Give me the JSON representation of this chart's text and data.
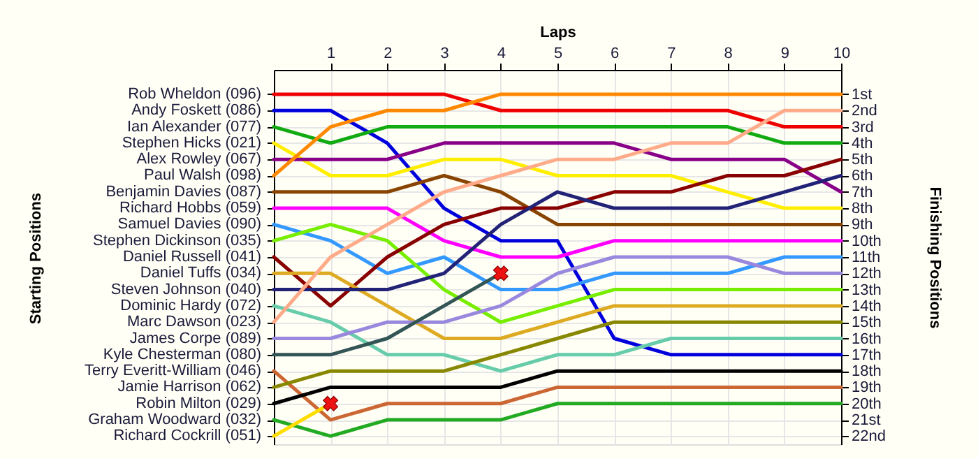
{
  "chart_data": {
    "type": "line",
    "xlabel": "Laps",
    "ylabel": "Finishing Positions",
    "x": [
      0,
      1,
      2,
      3,
      4,
      5,
      6,
      7,
      8,
      9,
      10
    ],
    "xlim": [
      0,
      10
    ],
    "xticks": [
      1,
      2,
      3,
      4,
      5,
      6,
      7,
      8,
      9,
      10
    ],
    "ylim": [
      22.5,
      -0.5
    ],
    "yticks": [
      {
        "value": 1,
        "label": "1st"
      },
      {
        "value": 2,
        "label": "2nd"
      },
      {
        "value": 3,
        "label": "3rd"
      },
      {
        "value": 4,
        "label": "4th"
      },
      {
        "value": 5,
        "label": "5th"
      },
      {
        "value": 6,
        "label": "6th"
      },
      {
        "value": 7,
        "label": "7th"
      },
      {
        "value": 8,
        "label": "8th"
      },
      {
        "value": 9,
        "label": "9th"
      },
      {
        "value": 10,
        "label": "10th"
      },
      {
        "value": 11,
        "label": "11th"
      },
      {
        "value": 12,
        "label": "12th"
      },
      {
        "value": 13,
        "label": "13th"
      },
      {
        "value": 14,
        "label": "14th"
      },
      {
        "value": 15,
        "label": "15th"
      },
      {
        "value": 16,
        "label": "16th"
      },
      {
        "value": 17,
        "label": "17th"
      },
      {
        "value": 18,
        "label": "18th"
      },
      {
        "value": 19,
        "label": "19th"
      },
      {
        "value": 20,
        "label": "20th"
      },
      {
        "value": 21,
        "label": "21st"
      },
      {
        "value": 22,
        "label": "22nd"
      }
    ],
    "grid": true,
    "annotations": [
      "Starting Positions",
      "Rob Wheldon (096)",
      "Andy Foskett (086)",
      "Ian Alexander (077)",
      "Stephen Hicks (021)",
      "Alex Rowley (067)",
      "Paul Walsh (098)",
      "Benjamin Davies (087)",
      "Richard Hobbs (059)",
      "Samuel Davies (090)",
      "Stephen Dickinson (035)",
      "Daniel Russell (041)",
      "Daniel Tuffs (034)",
      "Steven Johnson (040)",
      "Dominic Hardy (072)",
      "Marc Dawson (023)",
      "James Corpe (089)",
      "Kyle Chesterman (080)",
      "Terry Everitt-William (046)",
      "Jamie Harrison (062)",
      "Robin Milton (029)",
      "Graham Woodward (032)",
      "Richard Cockrill (051)"
    ],
    "series": [
      {
        "color": "#ee0000",
        "values": [
          1,
          1,
          1,
          1,
          2,
          2,
          2,
          2,
          2,
          3,
          3
        ]
      },
      {
        "color": "#0000dd",
        "values": [
          2,
          2,
          4,
          8,
          10,
          10,
          16,
          17,
          17,
          17,
          17
        ]
      },
      {
        "color": "#11aa11",
        "values": [
          3,
          4,
          3,
          3,
          3,
          3,
          3,
          3,
          3,
          4,
          4
        ]
      },
      {
        "color": "#ffee00",
        "values": [
          4,
          6,
          6,
          5,
          5,
          6,
          6,
          6,
          7,
          8,
          8
        ]
      },
      {
        "color": "#880088",
        "values": [
          5,
          5,
          5,
          4,
          4,
          4,
          4,
          5,
          5,
          5,
          7
        ]
      },
      {
        "color": "#ff8800",
        "values": [
          6,
          3,
          2,
          2,
          1,
          1,
          1,
          1,
          1,
          1,
          1
        ]
      },
      {
        "color": "#884400",
        "values": [
          7,
          7,
          7,
          6,
          7,
          9,
          9,
          9,
          9,
          9,
          9
        ]
      },
      {
        "color": "#ff00ff",
        "values": [
          8,
          8,
          8,
          10,
          11,
          11,
          10,
          10,
          10,
          10,
          10
        ]
      },
      {
        "color": "#3399ff",
        "values": [
          9,
          10,
          12,
          11,
          13,
          13,
          12,
          12,
          12,
          11,
          11
        ]
      },
      {
        "color": "#77ee00",
        "values": [
          10,
          9,
          10,
          13,
          15,
          14,
          13,
          13,
          13,
          13,
          13
        ]
      },
      {
        "color": "#880000",
        "values": [
          11,
          14,
          11,
          9,
          8,
          8,
          7,
          7,
          6,
          6,
          5
        ]
      },
      {
        "color": "#ddaa22",
        "values": [
          12,
          12,
          14,
          16,
          16,
          15,
          14,
          14,
          14,
          14,
          14
        ]
      },
      {
        "color": "#222277",
        "values": [
          13,
          13,
          13,
          12,
          9,
          7,
          8,
          8,
          8,
          7,
          6
        ]
      },
      {
        "color": "#66ccaa",
        "values": [
          14,
          15,
          17,
          17,
          18,
          17,
          17,
          16,
          16,
          16,
          16
        ]
      },
      {
        "color": "#ffaa88",
        "values": [
          15,
          11,
          9,
          7,
          6,
          5,
          5,
          4,
          4,
          2,
          2
        ]
      },
      {
        "color": "#9988dd",
        "values": [
          16,
          16,
          15,
          15,
          14,
          12,
          11,
          11,
          11,
          12,
          12
        ]
      },
      {
        "color": "#335555",
        "values": [
          17,
          17,
          16,
          14,
          12,
          null,
          null,
          null,
          null,
          null,
          null
        ]
      },
      {
        "color": "#cc6633",
        "values": [
          18,
          21,
          20,
          20,
          20,
          19,
          19,
          19,
          19,
          19,
          19
        ]
      },
      {
        "color": "#888800",
        "values": [
          19,
          18,
          18,
          18,
          17,
          16,
          15,
          15,
          15,
          15,
          15
        ]
      },
      {
        "color": "#000000",
        "values": [
          20,
          19,
          19,
          19,
          19,
          18,
          18,
          18,
          18,
          18,
          18
        ]
      },
      {
        "color": "#22aa22",
        "values": [
          21,
          22,
          21,
          21,
          21,
          20,
          20,
          20,
          20,
          20,
          20
        ]
      },
      {
        "color": "#ffdd00",
        "values": [
          22,
          20,
          null,
          null,
          null,
          null,
          null,
          null,
          null,
          null,
          null
        ]
      },
      {
        "type": "scatter",
        "marker": "cross",
        "color": "#ee1111",
        "x": [
          1,
          4
        ],
        "values": [
          20,
          12
        ]
      }
    ]
  }
}
